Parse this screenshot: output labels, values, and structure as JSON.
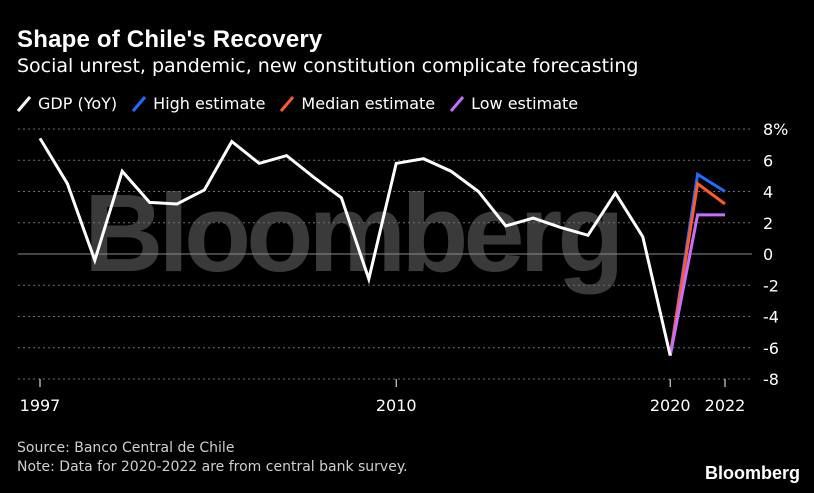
{
  "header": {
    "title": "Shape of Chile's Recovery",
    "subtitle": "Social unrest, pandemic, new constitution complicate forecasting"
  },
  "legend": [
    {
      "label": "GDP (YoY)",
      "color": "#ffffff"
    },
    {
      "label": "High estimate",
      "color": "#1e6fff"
    },
    {
      "label": "Median estimate",
      "color": "#ff5a2b"
    },
    {
      "label": "Low estimate",
      "color": "#c86dff"
    }
  ],
  "watermark_text": "Bloomberg",
  "footer": {
    "source": "Source: Banco Central de Chile",
    "note": "Note: Data for 2020-2022 are from central bank survey."
  },
  "brand": "Bloomberg",
  "chart_data": {
    "type": "line",
    "xlim": [
      1997,
      2022
    ],
    "ylim": [
      -8,
      8
    ],
    "x_ticks": [
      1997,
      2010,
      2020,
      2022
    ],
    "x_tick_labels": [
      "1997",
      "2010",
      "2020",
      "2022"
    ],
    "y_ticks": [
      8,
      6,
      4,
      2,
      0,
      -2,
      -4,
      -6,
      -8
    ],
    "y_tick_labels": [
      "8%",
      "6",
      "4",
      "2",
      "0",
      "-2",
      "-4",
      "-6",
      "-8"
    ],
    "grid": "horizontal dotted",
    "series": [
      {
        "name": "GDP (YoY)",
        "color": "#ffffff",
        "x": [
          1997,
          1998,
          1999,
          2000,
          2001,
          2002,
          2003,
          2004,
          2005,
          2006,
          2007,
          2008,
          2009,
          2010,
          2011,
          2012,
          2013,
          2014,
          2015,
          2016,
          2017,
          2018,
          2019,
          2020
        ],
        "y": [
          7.4,
          4.5,
          -0.4,
          5.3,
          3.3,
          3.2,
          4.1,
          7.2,
          5.8,
          6.3,
          4.9,
          3.6,
          -1.6,
          5.8,
          6.1,
          5.3,
          4.0,
          1.8,
          2.3,
          1.7,
          1.2,
          3.9,
          1.1,
          -6.5
        ]
      },
      {
        "name": "High estimate",
        "color": "#1e6fff",
        "x": [
          2020,
          2021,
          2022
        ],
        "y": [
          -6.5,
          5.1,
          4.0
        ]
      },
      {
        "name": "Median estimate",
        "color": "#ff5a2b",
        "x": [
          2020,
          2021,
          2022
        ],
        "y": [
          -6.5,
          4.5,
          3.2
        ]
      },
      {
        "name": "Low estimate",
        "color": "#c86dff",
        "x": [
          2020,
          2021,
          2022
        ],
        "y": [
          -6.5,
          2.5,
          2.5
        ]
      }
    ]
  }
}
